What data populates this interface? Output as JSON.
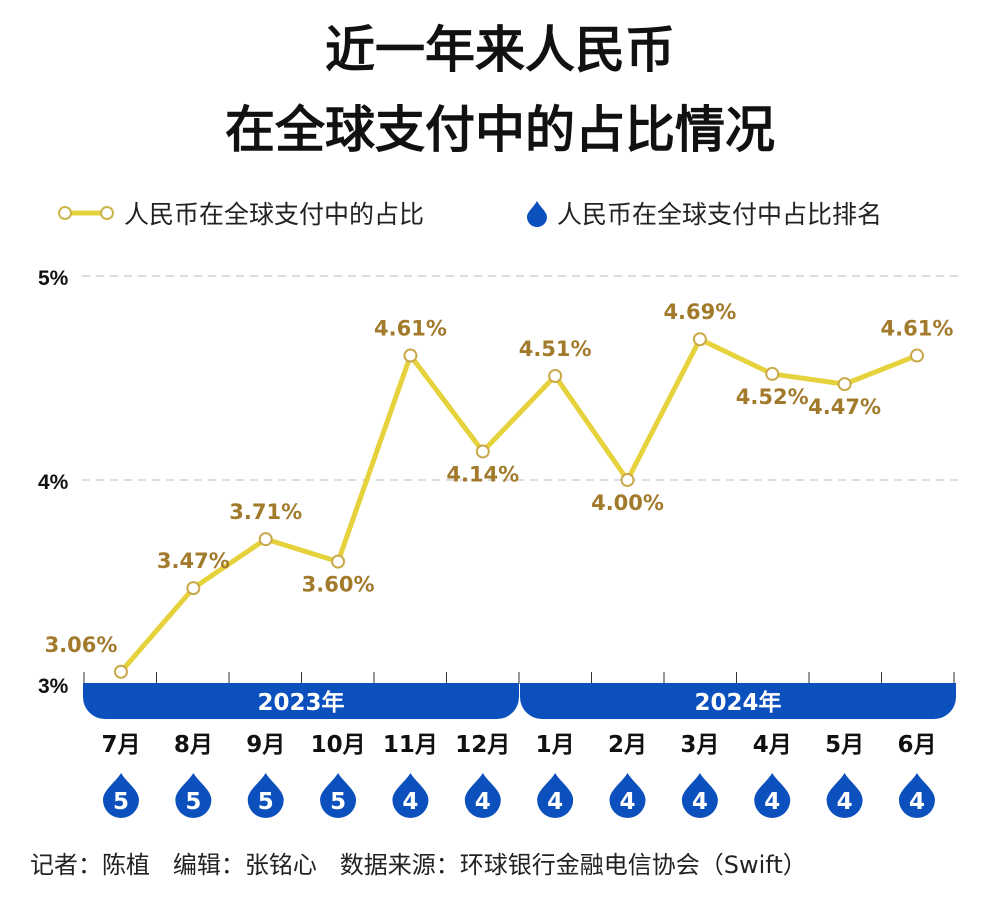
{
  "title_line1": "近一年来人民币",
  "title_line2": "在全球支付中的占比情况",
  "legend": {
    "share": "人民币在全球支付中的占比",
    "rank": "人民币在全球支付中占比排名"
  },
  "colors": {
    "line": "#e6d23c",
    "label": "#a27a2b",
    "blue": "#0b50bd",
    "grid": "#bbbbbb"
  },
  "chart_data": {
    "type": "line",
    "categories": [
      "7月",
      "8月",
      "9月",
      "10月",
      "11月",
      "12月",
      "1月",
      "2月",
      "3月",
      "4月",
      "5月",
      "6月"
    ],
    "year_groups": [
      {
        "label": "2023年",
        "months": 6
      },
      {
        "label": "2024年",
        "months": 6
      }
    ],
    "series": [
      {
        "name": "人民币在全球支付中的占比",
        "values": [
          3.06,
          3.47,
          3.71,
          3.6,
          4.61,
          4.14,
          4.51,
          4.0,
          4.69,
          4.52,
          4.47,
          4.61
        ],
        "labels": [
          "3.06%",
          "3.47%",
          "3.71%",
          "3.60%",
          "4.61%",
          "4.14%",
          "4.51%",
          "4.00%",
          "4.69%",
          "4.52%",
          "4.47%",
          "4.61%"
        ]
      },
      {
        "name": "人民币在全球支付中占比排名",
        "values": [
          5,
          5,
          5,
          5,
          4,
          4,
          4,
          4,
          4,
          4,
          4,
          4
        ]
      }
    ],
    "yticks": [
      "3%",
      "4%",
      "5%"
    ],
    "ylim": [
      3,
      5
    ],
    "grid": true,
    "legend_position": "top"
  },
  "footer": "记者：陈植   编辑：张铭心   数据来源：环球银行金融电信协会（Swift）"
}
